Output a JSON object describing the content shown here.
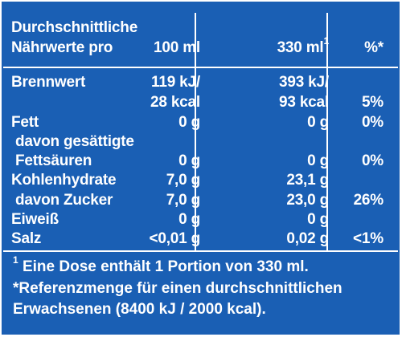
{
  "header": {
    "label_line1": "Durchschnittliche",
    "label_line2": "Nährwerte pro",
    "col_100ml": "100 ml",
    "col_330ml": "330 ml",
    "col_330ml_sup": "1",
    "col_percent": "%*"
  },
  "rows": [
    {
      "label": "Brennwert",
      "v100_kj": "119 kJ/",
      "v100_kcal": "28 kcal",
      "v330_kj": "393 kJ/",
      "v330_kcal": "93 kcal",
      "pct": "5%"
    },
    {
      "label": "Fett",
      "v100": "0 g",
      "v330": "0 g",
      "pct": "0%"
    },
    {
      "label": "davon gesättigte",
      "label2": "Fettsäuren",
      "v100": "0 g",
      "v330": "0 g",
      "pct": "0%"
    },
    {
      "label": "Kohlenhydrate",
      "v100": "7,0 g",
      "v330": "23,1 g",
      "pct": ""
    },
    {
      "label": "davon Zucker",
      "v100": "7,0 g",
      "v330": "23,0 g",
      "pct": "26%"
    },
    {
      "label": "Eiweiß",
      "v100": "0 g",
      "v330": "0 g",
      "pct": ""
    },
    {
      "label": "Salz",
      "v100": "<0,01 g",
      "v330": "0,02 g",
      "pct": "<1%"
    }
  ],
  "footnotes": {
    "note1_sup": "1",
    "note1": " Eine Dose enthält 1 Portion von 330 ml.",
    "note2_line1": "*Referenzmenge für einen durchschnittlichen",
    "note2_line2": "Erwachsenen (8400 kJ / 2000 kcal)."
  },
  "colors": {
    "background": "#1a5fb4",
    "text": "#ffffff"
  }
}
